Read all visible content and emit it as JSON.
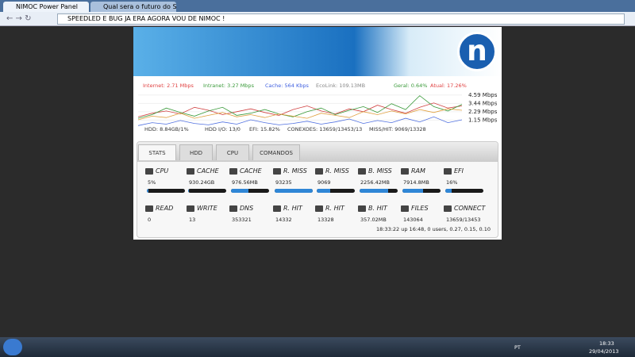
{
  "browser": {
    "tabs": [
      "NIMOC Power Panel",
      "Qual sera o futuro do Sp"
    ],
    "address": "SPEEDLED E BUG JA ERA AGORA VOU DE NIMOC !"
  },
  "graph": {
    "header": [
      "Internet: 2.71 Mbps",
      "Intranet: 3.27 Mbps",
      "Cache: 564 Kbps",
      "EcoLink: 109.13MB",
      "Geral: 0.64%",
      "Atual: 17.26%"
    ],
    "header_colors": [
      "#e04040",
      "#3a9a3a",
      "#4060e0",
      "#888888",
      "#3a9a3a",
      "#e04040"
    ],
    "ylim": [
      0,
      5
    ],
    "yticks": [
      {
        "value": 4.59,
        "label": "4.59 Mbps"
      },
      {
        "value": 3.44,
        "label": "3.44 Mbps"
      },
      {
        "value": 2.29,
        "label": "2.29 Mbps"
      },
      {
        "value": 1.15,
        "label": "1.15 Mbps"
      }
    ],
    "series": [
      {
        "name": "Internet",
        "color": "#d04040",
        "values": [
          1.6,
          2.1,
          2.4,
          2.0,
          2.9,
          2.5,
          1.9,
          2.3,
          2.7,
          2.2,
          1.8,
          2.6,
          3.1,
          2.4,
          2.0,
          2.7,
          2.3,
          3.2,
          2.6,
          2.1,
          2.9,
          3.5,
          2.8,
          3.1
        ]
      },
      {
        "name": "Intranet",
        "color": "#3a9a3a",
        "values": [
          1.4,
          1.9,
          2.8,
          2.2,
          1.7,
          2.4,
          2.9,
          1.8,
          2.1,
          2.6,
          2.0,
          1.6,
          2.3,
          2.8,
          1.9,
          2.5,
          3.0,
          2.2,
          3.4,
          2.6,
          4.5,
          3.0,
          2.4,
          3.3
        ]
      },
      {
        "name": "Cache",
        "color": "#5070e0",
        "values": [
          0.4,
          0.8,
          0.6,
          1.1,
          0.7,
          0.5,
          0.9,
          0.6,
          1.2,
          0.8,
          0.5,
          0.7,
          1.0,
          0.6,
          0.9,
          1.3,
          0.7,
          1.1,
          0.8,
          1.4,
          0.9,
          1.6,
          0.8,
          1.2
        ]
      },
      {
        "name": "EcoLink",
        "color": "#e0a040",
        "values": [
          1.2,
          1.7,
          1.5,
          2.1,
          1.4,
          1.8,
          2.2,
          1.6,
          1.9,
          1.5,
          2.0,
          1.7,
          1.4,
          2.1,
          1.8,
          1.5,
          2.3,
          1.9,
          2.4,
          2.0,
          2.6,
          2.2,
          2.7,
          2.5
        ]
      }
    ],
    "footer": [
      "HDD: 8.84GB/1%",
      "HDD I/O: 13/0",
      "EFI: 15.82%",
      "CONEXOES: 13659/13453/13",
      "MISS/HIT: 9069/13328"
    ]
  },
  "tabs": [
    "STATS",
    "HDD",
    "CPU",
    "COMANDOS"
  ],
  "stats": [
    [
      {
        "label": "CPU",
        "value": "5%",
        "meter": 5
      },
      {
        "label": "CACHE",
        "value": "930.24GB",
        "meter": 3
      },
      {
        "label": "CACHE",
        "value": "976.56MB",
        "meter": 45
      },
      {
        "label": "R. MISS",
        "value": "93235",
        "meter": 100
      },
      {
        "label": "R. MISS",
        "value": "9069",
        "meter": 35
      },
      {
        "label": "B. MISS",
        "value": "2256.42MB",
        "meter": 75
      },
      {
        "label": "RAM",
        "value": "7914.8MB",
        "meter": 55
      },
      {
        "label": "EFI",
        "value": "16%",
        "meter": 16
      }
    ],
    [
      {
        "label": "READ",
        "value": "0"
      },
      {
        "label": "WRITE",
        "value": "13"
      },
      {
        "label": "DNS",
        "value": "353321"
      },
      {
        "label": "R. HIT",
        "value": "14332"
      },
      {
        "label": "R. HIT",
        "value": "13328"
      },
      {
        "label": "B. HIT",
        "value": "357.02MB"
      },
      {
        "label": "FILES",
        "value": "143064"
      },
      {
        "label": "CONNECT",
        "value": "13659/13453"
      }
    ]
  ],
  "uptime": "18:33:22 up 16:48, 0 users, 0.27, 0.15, 0.10",
  "taskbar": {
    "lang": "PT",
    "time": "18:33",
    "date": "29/04/2013"
  }
}
